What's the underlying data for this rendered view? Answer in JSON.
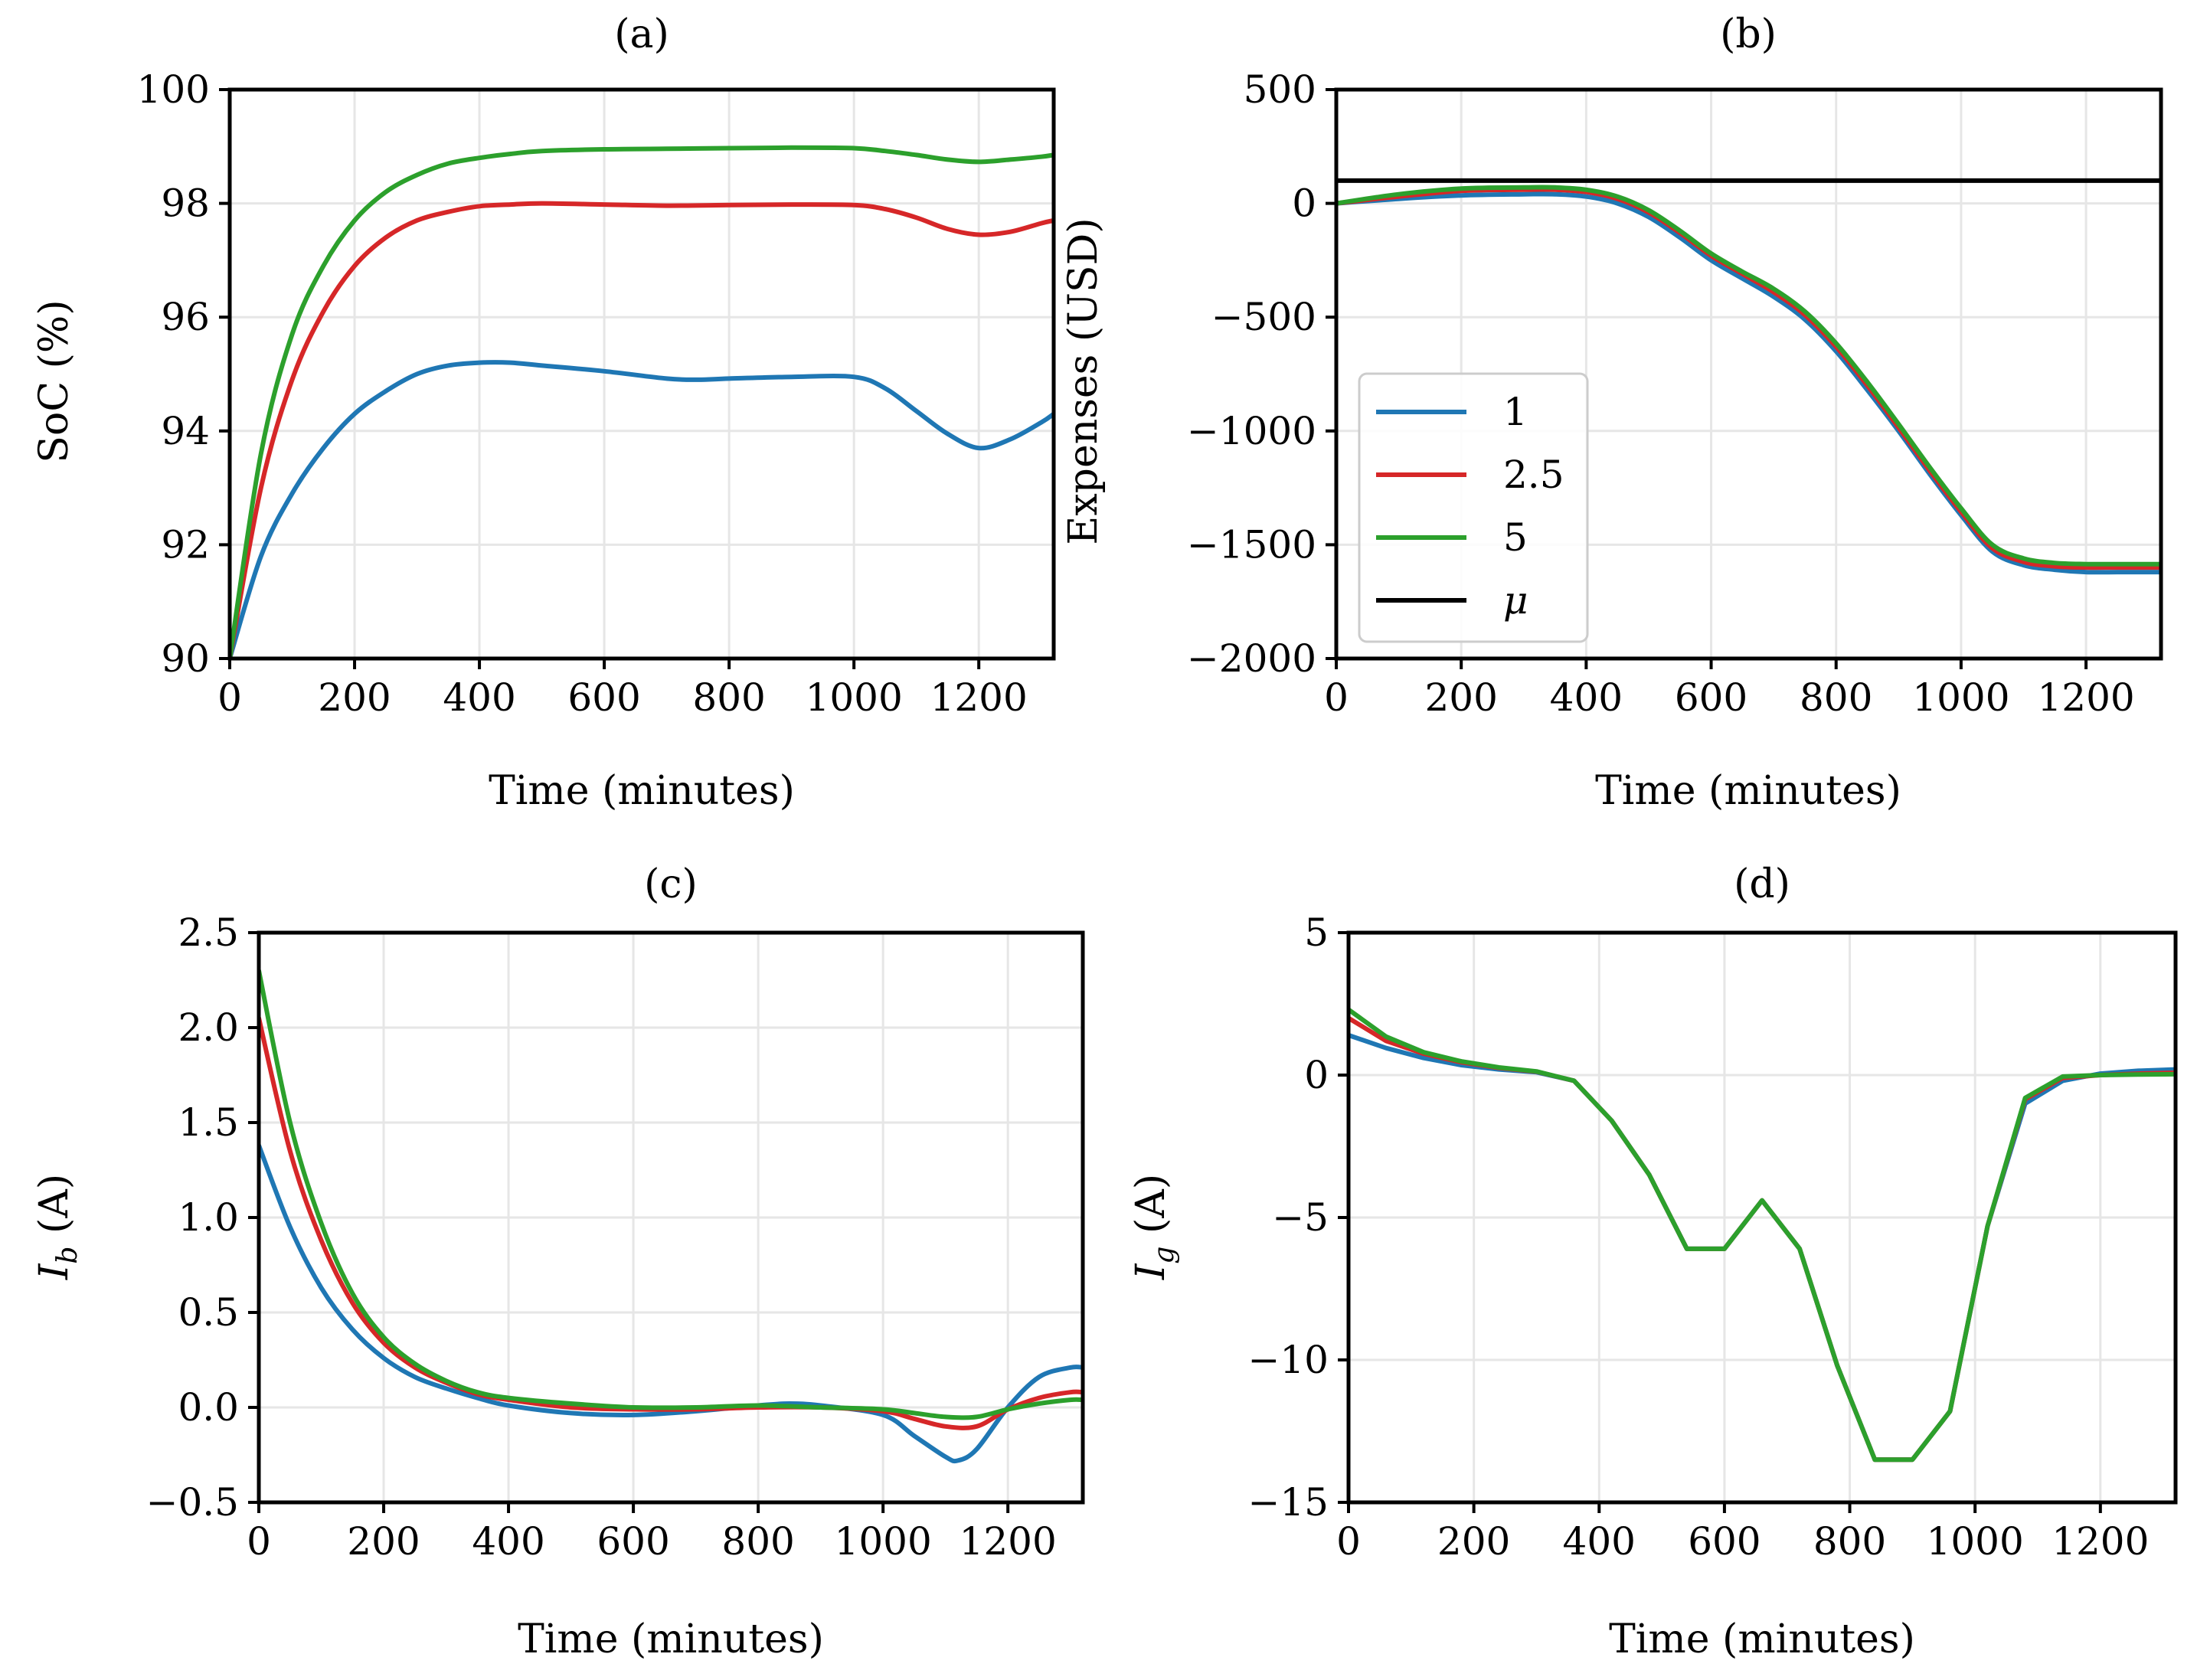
{
  "colors": {
    "series_1": "#1f77b4",
    "series_2_5": "#d62728",
    "series_5": "#2ca02c",
    "mu": "#000000",
    "grid": "#e6e6e6"
  },
  "chart_data": [
    {
      "id": "a",
      "type": "line",
      "title": "(a)",
      "xlabel": "Time (minutes)",
      "ylabel": "SoC (%)",
      "xlim": [
        0,
        1320
      ],
      "ylim": [
        90,
        100
      ],
      "xticks": [
        0,
        200,
        400,
        600,
        800,
        1000,
        1200
      ],
      "yticks": [
        90,
        92,
        94,
        96,
        98,
        100
      ],
      "grid": true,
      "series": [
        {
          "name": "1",
          "color": "#1f77b4",
          "x": [
            0,
            50,
            100,
            150,
            200,
            250,
            300,
            350,
            400,
            450,
            500,
            600,
            700,
            750,
            800,
            900,
            1000,
            1050,
            1100,
            1150,
            1200,
            1250,
            1300,
            1320
          ],
          "y": [
            90.0,
            91.8,
            92.9,
            93.7,
            94.3,
            94.7,
            95.0,
            95.15,
            95.2,
            95.2,
            95.15,
            95.05,
            94.92,
            94.9,
            94.92,
            94.95,
            94.95,
            94.75,
            94.35,
            93.95,
            93.7,
            93.85,
            94.15,
            94.3
          ]
        },
        {
          "name": "2.5",
          "color": "#d62728",
          "x": [
            0,
            50,
            100,
            150,
            200,
            250,
            300,
            350,
            400,
            450,
            500,
            600,
            700,
            800,
            900,
            1000,
            1050,
            1100,
            1150,
            1200,
            1250,
            1300,
            1320
          ],
          "y": [
            90.0,
            93.0,
            94.9,
            96.1,
            96.9,
            97.4,
            97.7,
            97.85,
            97.95,
            97.98,
            98.0,
            97.98,
            97.96,
            97.97,
            97.98,
            97.97,
            97.9,
            97.75,
            97.55,
            97.45,
            97.5,
            97.65,
            97.7
          ]
        },
        {
          "name": "5",
          "color": "#2ca02c",
          "x": [
            0,
            50,
            100,
            150,
            200,
            250,
            300,
            350,
            400,
            450,
            500,
            600,
            700,
            800,
            900,
            1000,
            1050,
            1100,
            1150,
            1200,
            1250,
            1300,
            1320
          ],
          "y": [
            90.0,
            93.6,
            95.7,
            96.9,
            97.7,
            98.2,
            98.5,
            98.7,
            98.8,
            98.87,
            98.92,
            98.95,
            98.96,
            98.97,
            98.98,
            98.97,
            98.92,
            98.85,
            98.77,
            98.73,
            98.77,
            98.82,
            98.85
          ]
        }
      ]
    },
    {
      "id": "b",
      "type": "line",
      "title": "(b)",
      "xlabel": "Time (minutes)",
      "ylabel": "Expenses (USD)",
      "xlim": [
        0,
        1320
      ],
      "ylim": [
        -2000,
        500
      ],
      "xticks": [
        0,
        200,
        400,
        600,
        800,
        1000,
        1200
      ],
      "xtick_labels": [
        "0",
        "200",
        "400",
        "600",
        "800",
        "1000",
        "1200"
      ],
      "yticks": [
        -2000,
        -1500,
        -1000,
        -500,
        0,
        500
      ],
      "ytick_labels": [
        "−2000",
        "−1500",
        "−1000",
        "−500",
        "0",
        "500"
      ],
      "grid": true,
      "legend": {
        "position": "lower-left",
        "entries": [
          "1",
          "2.5",
          "5",
          "μ"
        ]
      },
      "series": [
        {
          "name": "1",
          "color": "#1f77b4",
          "x": [
            0,
            100,
            200,
            300,
            350,
            400,
            450,
            500,
            550,
            600,
            650,
            700,
            750,
            800,
            850,
            900,
            950,
            1000,
            1050,
            1100,
            1150,
            1200,
            1250,
            1320
          ],
          "y": [
            0,
            20,
            35,
            40,
            40,
            30,
            0,
            -60,
            -150,
            -250,
            -330,
            -410,
            -510,
            -650,
            -820,
            -1000,
            -1190,
            -1370,
            -1530,
            -1590,
            -1610,
            -1620,
            -1620,
            -1620
          ]
        },
        {
          "name": "2.5",
          "color": "#d62728",
          "x": [
            0,
            100,
            200,
            300,
            350,
            400,
            450,
            500,
            550,
            600,
            650,
            700,
            750,
            800,
            850,
            900,
            950,
            1000,
            1050,
            1100,
            1150,
            1200,
            1250,
            1320
          ],
          "y": [
            0,
            30,
            55,
            60,
            60,
            50,
            20,
            -40,
            -130,
            -230,
            -310,
            -390,
            -490,
            -630,
            -800,
            -985,
            -1175,
            -1355,
            -1515,
            -1575,
            -1595,
            -1600,
            -1600,
            -1600
          ]
        },
        {
          "name": "5",
          "color": "#2ca02c",
          "x": [
            0,
            100,
            200,
            300,
            350,
            400,
            450,
            500,
            550,
            600,
            650,
            700,
            750,
            800,
            850,
            900,
            950,
            1000,
            1050,
            1100,
            1150,
            1200,
            1250,
            1320
          ],
          "y": [
            0,
            40,
            65,
            70,
            70,
            60,
            30,
            -30,
            -120,
            -220,
            -300,
            -375,
            -475,
            -615,
            -785,
            -970,
            -1160,
            -1340,
            -1500,
            -1560,
            -1580,
            -1585,
            -1585,
            -1585
          ]
        },
        {
          "name": "μ",
          "color": "#000000",
          "x": [
            0,
            1320
          ],
          "y": [
            100,
            100
          ]
        }
      ]
    },
    {
      "id": "c",
      "type": "line",
      "title": "(c)",
      "xlabel": "Time (minutes)",
      "ylabel": "I_b (A)",
      "xlim": [
        0,
        1320
      ],
      "ylim": [
        -0.5,
        2.5
      ],
      "xticks": [
        0,
        200,
        400,
        600,
        800,
        1000,
        1200
      ],
      "yticks": [
        -0.5,
        0.0,
        0.5,
        1.0,
        1.5,
        2.0,
        2.5
      ],
      "ytick_labels": [
        "−0.5",
        "0.0",
        "0.5",
        "1.0",
        "1.5",
        "2.0",
        "2.5"
      ],
      "grid": true,
      "series": [
        {
          "name": "1",
          "color": "#1f77b4",
          "x": [
            0,
            50,
            100,
            150,
            200,
            250,
            300,
            350,
            400,
            500,
            600,
            700,
            800,
            850,
            900,
            1000,
            1050,
            1100,
            1120,
            1150,
            1200,
            1250,
            1300,
            1320
          ],
          "y": [
            1.38,
            0.95,
            0.63,
            0.41,
            0.26,
            0.16,
            0.1,
            0.05,
            0.01,
            -0.03,
            -0.04,
            -0.02,
            0.01,
            0.02,
            0.01,
            -0.04,
            -0.15,
            -0.26,
            -0.28,
            -0.22,
            0.0,
            0.16,
            0.21,
            0.21
          ]
        },
        {
          "name": "2.5",
          "color": "#d62728",
          "x": [
            0,
            50,
            100,
            150,
            200,
            250,
            300,
            350,
            400,
            500,
            600,
            700,
            800,
            900,
            1000,
            1050,
            1100,
            1150,
            1200,
            1250,
            1300,
            1320
          ],
          "y": [
            2.05,
            1.35,
            0.88,
            0.55,
            0.34,
            0.21,
            0.13,
            0.07,
            0.04,
            0.0,
            -0.01,
            -0.01,
            0.0,
            0.0,
            -0.02,
            -0.06,
            -0.1,
            -0.1,
            -0.01,
            0.05,
            0.08,
            0.08
          ]
        },
        {
          "name": "5",
          "color": "#2ca02c",
          "x": [
            0,
            50,
            100,
            150,
            200,
            250,
            300,
            350,
            400,
            500,
            600,
            700,
            800,
            900,
            1000,
            1050,
            1100,
            1150,
            1200,
            1250,
            1300,
            1320
          ],
          "y": [
            2.3,
            1.5,
            0.97,
            0.6,
            0.37,
            0.23,
            0.14,
            0.08,
            0.05,
            0.02,
            0.0,
            0.0,
            0.01,
            0.0,
            -0.01,
            -0.03,
            -0.05,
            -0.05,
            -0.01,
            0.02,
            0.04,
            0.04
          ]
        }
      ]
    },
    {
      "id": "d",
      "type": "line",
      "title": "(d)",
      "xlabel": "Time (minutes)",
      "ylabel": "I_g (A)",
      "xlim": [
        0,
        1320
      ],
      "ylim": [
        -15,
        5
      ],
      "xticks": [
        0,
        200,
        400,
        600,
        800,
        1000,
        1200
      ],
      "yticks": [
        -15,
        -10,
        -5,
        0,
        5
      ],
      "ytick_labels": [
        "−15",
        "−10",
        "−5",
        "0",
        "5"
      ],
      "grid": true,
      "series": [
        {
          "name": "1",
          "color": "#1f77b4",
          "x": [
            0,
            60,
            120,
            180,
            240,
            300,
            360,
            420,
            480,
            540,
            600,
            660,
            720,
            780,
            840,
            900,
            960,
            1020,
            1080,
            1140,
            1200,
            1260,
            1320
          ],
          "y": [
            1.4,
            0.95,
            0.6,
            0.35,
            0.2,
            0.1,
            -0.2,
            -1.6,
            -3.5,
            -6.1,
            -6.1,
            -4.4,
            -6.1,
            -10.2,
            -13.5,
            -13.5,
            -11.8,
            -5.3,
            -1.0,
            -0.2,
            0.05,
            0.15,
            0.2
          ]
        },
        {
          "name": "2.5",
          "color": "#d62728",
          "x": [
            0,
            60,
            120,
            180,
            240,
            300,
            360,
            420,
            480,
            540,
            600,
            660,
            720,
            780,
            840,
            900,
            960,
            1020,
            1080,
            1140,
            1200,
            1260,
            1320
          ],
          "y": [
            2.0,
            1.2,
            0.75,
            0.45,
            0.25,
            0.12,
            -0.2,
            -1.6,
            -3.5,
            -6.1,
            -6.1,
            -4.4,
            -6.1,
            -10.2,
            -13.5,
            -13.5,
            -11.8,
            -5.3,
            -0.85,
            -0.1,
            0.0,
            0.05,
            0.08
          ]
        },
        {
          "name": "5",
          "color": "#2ca02c",
          "x": [
            0,
            60,
            120,
            180,
            240,
            300,
            360,
            420,
            480,
            540,
            600,
            660,
            720,
            780,
            840,
            900,
            960,
            1020,
            1080,
            1140,
            1200,
            1260,
            1320
          ],
          "y": [
            2.3,
            1.35,
            0.8,
            0.48,
            0.27,
            0.13,
            -0.2,
            -1.6,
            -3.5,
            -6.1,
            -6.1,
            -4.4,
            -6.1,
            -10.2,
            -13.5,
            -13.5,
            -11.8,
            -5.3,
            -0.8,
            -0.05,
            0.0,
            0.02,
            0.03
          ]
        }
      ]
    }
  ]
}
